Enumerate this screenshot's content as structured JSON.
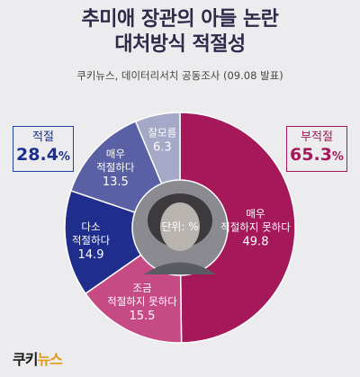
{
  "title_line1": "추미애 장관의 아들 논란",
  "title_line2": "대처방식 적절성",
  "source": "쿠키뉴스, 데이터리서치 공동조사 (09.08 발표)",
  "unit_label": "단위: %",
  "summary_left": {
    "label": "적절",
    "value": "28.4",
    "unit": "%"
  },
  "summary_right": {
    "label": "부적절",
    "value": "65.3",
    "unit": "%"
  },
  "logo": {
    "part1": "쿠키",
    "part2": "뉴스"
  },
  "colors": {
    "very_inappropriate": "#a5185a",
    "somewhat_inappropriate": "#c64a83",
    "somewhat_appropriate": "#1f2e8c",
    "very_appropriate": "#5961a4",
    "dont_know": "#a5a8c6"
  },
  "chart_data": {
    "type": "pie",
    "title": "추미애 장관의 아들 논란 대처방식 적절성",
    "unit": "%",
    "slices": [
      {
        "label": "매우 적절하지 못하다",
        "value": 49.8,
        "color": "#a5185a"
      },
      {
        "label": "조금 적절하지 못하다",
        "value": 15.5,
        "color": "#c64a83"
      },
      {
        "label": "다소 적절하다",
        "value": 14.9,
        "color": "#1f2e8c"
      },
      {
        "label": "매우 적절하다",
        "value": 13.5,
        "color": "#5961a4"
      },
      {
        "label": "잘모름",
        "value": 6.3,
        "color": "#a5a8c6"
      }
    ],
    "slice_labels": [
      {
        "lines": [
          "매우",
          "적절하지 못하다"
        ],
        "value": "49.8"
      },
      {
        "lines": [
          "조금",
          "적절하지 못하다"
        ],
        "value": "15.5"
      },
      {
        "lines": [
          "다소",
          "적절하다"
        ],
        "value": "14.9"
      },
      {
        "lines": [
          "매우",
          "적절하다"
        ],
        "value": "13.5"
      },
      {
        "lines": [
          "잘모름"
        ],
        "value": "6.3"
      }
    ]
  }
}
